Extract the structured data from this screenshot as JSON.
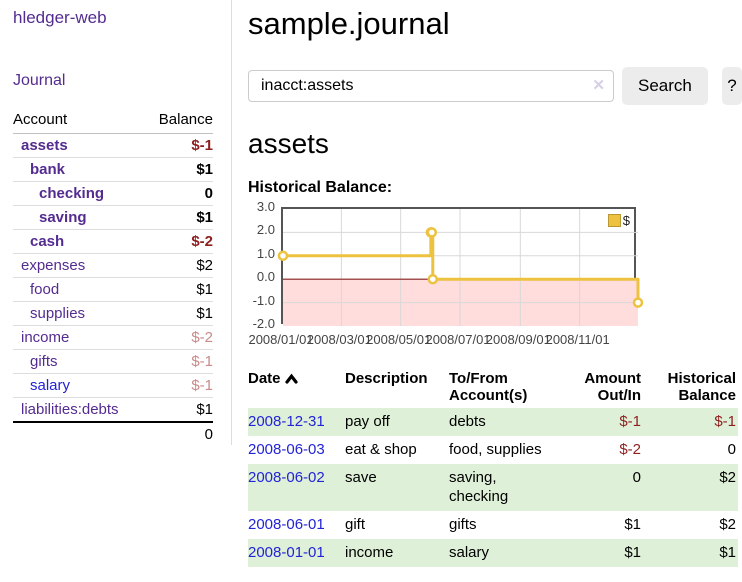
{
  "sidebar": {
    "app_title": "hledger-web",
    "journal_link": "Journal",
    "headers": {
      "account": "Account",
      "balance": "Balance"
    },
    "accounts": [
      {
        "name": "assets",
        "balance": "$-1"
      },
      {
        "name": "bank",
        "balance": "$1"
      },
      {
        "name": "checking",
        "balance": "0"
      },
      {
        "name": "saving",
        "balance": "$1"
      },
      {
        "name": "cash",
        "balance": "$-2"
      },
      {
        "name": "expenses",
        "balance": "$2"
      },
      {
        "name": "food",
        "balance": "$1"
      },
      {
        "name": "supplies",
        "balance": "$1"
      },
      {
        "name": "income",
        "balance": "$-2"
      },
      {
        "name": "gifts",
        "balance": "$-1"
      },
      {
        "name": "salary",
        "balance": "$-1"
      },
      {
        "name": "liabilities:debts",
        "balance": "$1"
      }
    ],
    "total": "0"
  },
  "main": {
    "title": "sample.journal",
    "search": {
      "value": "inacct:assets",
      "clear_icon": "✕",
      "search_button": "Search",
      "help_button": "?"
    },
    "heading": "assets",
    "chart_title": "Historical Balance:"
  },
  "chart_data": {
    "type": "line",
    "style": "step",
    "title": "Historical Balance",
    "series": [
      {
        "name": "$",
        "color": "#EDC240",
        "points": [
          [
            "2008-01-01",
            1
          ],
          [
            "2008-06-01",
            2
          ],
          [
            "2008-06-02",
            2
          ],
          [
            "2008-06-03",
            0
          ],
          [
            "2008-12-31",
            -1
          ]
        ]
      }
    ],
    "xlim": [
      "2008-01-01",
      "2008-12-31"
    ],
    "ylim": [
      -2,
      3
    ],
    "x_tick_labels": [
      "2008/01/01",
      "2008/03/01",
      "2008/05/01",
      "2008/07/01",
      "2008/09/01",
      "2008/11/01"
    ],
    "y_tick_labels": [
      "3.0",
      "2.0",
      "1.0",
      "0.0",
      "-1.0",
      "-2.0"
    ],
    "grid": true,
    "legend_position": "top-right",
    "negative_region_color": "#ffdddd",
    "zero_line_color": "#8e2323",
    "grid_color": "#d8d8d8"
  },
  "register": {
    "sort_icon": "chevron-up",
    "headers": {
      "date": "Date",
      "description": "Description",
      "account": "To/From Account(s)",
      "amount": "Amount Out/In",
      "balance": "Historical Balance"
    },
    "rows": [
      {
        "date": "2008-12-31",
        "description": "pay off",
        "account": "debts",
        "amount": "$-1",
        "balance": "$-1"
      },
      {
        "date": "2008-06-03",
        "description": "eat & shop",
        "account": "food, supplies",
        "amount": "$-2",
        "balance": "0"
      },
      {
        "date": "2008-06-02",
        "description": "save",
        "account": "saving, checking",
        "amount": "0",
        "balance": "$2"
      },
      {
        "date": "2008-06-01",
        "description": "gift",
        "account": "gifts",
        "amount": "$1",
        "balance": "$2"
      },
      {
        "date": "2008-01-01",
        "description": "income",
        "account": "salary",
        "amount": "$1",
        "balance": "$1"
      }
    ]
  }
}
